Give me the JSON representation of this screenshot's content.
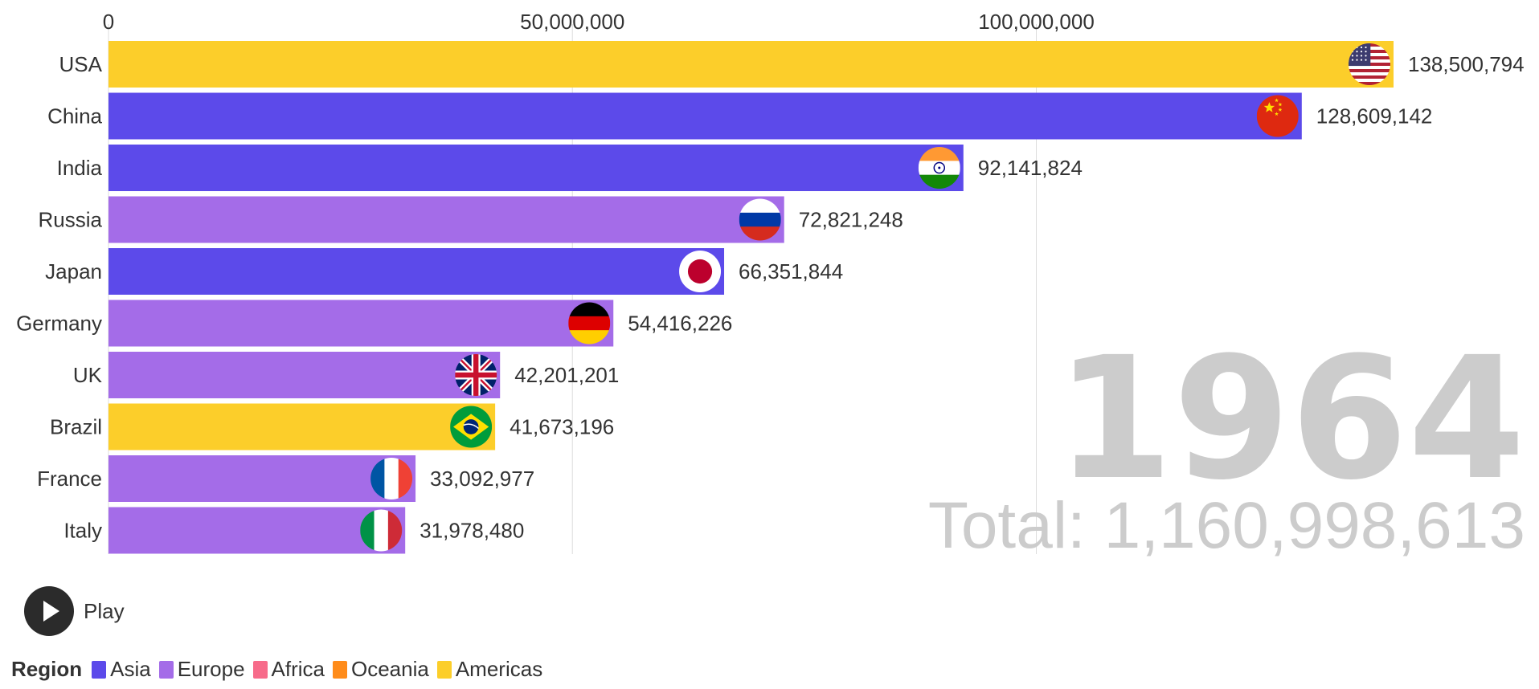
{
  "chart_data": {
    "type": "bar",
    "orientation": "horizontal",
    "year": "1964",
    "total_label": "Total: 1,160,998,613",
    "xlim": [
      0,
      138500794
    ],
    "ticks": [
      {
        "value": 0,
        "label": "0"
      },
      {
        "value": 50000000,
        "label": "50,000,000"
      },
      {
        "value": 100000000,
        "label": "100,000,000"
      }
    ],
    "grid": true,
    "categories": [
      "USA",
      "China",
      "India",
      "Russia",
      "Japan",
      "Germany",
      "UK",
      "Brazil",
      "France",
      "Italy"
    ],
    "values": [
      138500794,
      128609142,
      92141824,
      72821248,
      66351844,
      54416226,
      42201201,
      41673196,
      33092977,
      31978480
    ],
    "value_labels": [
      "138,500,794",
      "128,609,142",
      "92,141,824",
      "72,821,248",
      "66,351,844",
      "54,416,226",
      "42,201,201",
      "41,673,196",
      "33,092,977",
      "31,978,480"
    ],
    "regions": [
      "Americas",
      "Asia",
      "Asia",
      "Europe",
      "Asia",
      "Europe",
      "Europe",
      "Americas",
      "Europe",
      "Europe"
    ],
    "flags": [
      "flag-usa-icon",
      "flag-china-icon",
      "flag-india-icon",
      "flag-russia-icon",
      "flag-japan-icon",
      "flag-germany-icon",
      "flag-uk-icon",
      "flag-brazil-icon",
      "flag-france-icon",
      "flag-italy-icon"
    ]
  },
  "controls": {
    "play_label": "Play"
  },
  "legend": {
    "title": "Region",
    "items": [
      {
        "label": "Asia",
        "color": "#5c4aea"
      },
      {
        "label": "Europe",
        "color": "#a46ce8"
      },
      {
        "label": "Africa",
        "color": "#f76b8a"
      },
      {
        "label": "Oceania",
        "color": "#ff8c1a"
      },
      {
        "label": "Americas",
        "color": "#fcce2a"
      }
    ]
  }
}
